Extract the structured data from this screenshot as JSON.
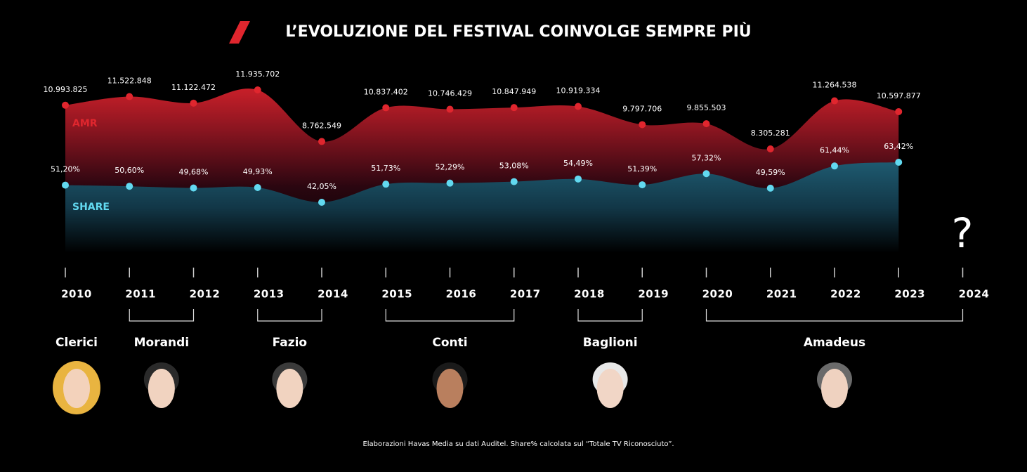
{
  "chart_data": {
    "type": "area",
    "title": "L’EVOLUZIONE DEL FESTIVAL COINVOLGE SEMPRE PIÙ",
    "categories": [
      "2010",
      "2011",
      "2012",
      "2013",
      "2014",
      "2015",
      "2016",
      "2017",
      "2018",
      "2019",
      "2020",
      "2021",
      "2022",
      "2023",
      "2024"
    ],
    "series": [
      {
        "name": "AMR",
        "color": "#e0262e",
        "values": [
          10993825,
          11522848,
          11122472,
          11935702,
          8762549,
          10837402,
          10746429,
          10847949,
          10919334,
          9797706,
          9855503,
          8305281,
          11264538,
          10597877,
          null
        ],
        "value_labels": [
          "10.993.825",
          "11.522.848",
          "11.122.472",
          "11.935.702",
          "8.762.549",
          "10.837.402",
          "10.746.429",
          "10.847.949",
          "10.919.334",
          "9.797.706",
          "9.855.503",
          "8.305.281",
          "11.264.538",
          "10.597.877",
          null
        ]
      },
      {
        "name": "SHARE",
        "color": "#62d9f0",
        "values": [
          51.2,
          50.6,
          49.68,
          49.93,
          42.05,
          51.73,
          52.29,
          53.08,
          54.49,
          51.39,
          57.32,
          49.59,
          61.44,
          63.42,
          null
        ],
        "value_labels": [
          "51,20%",
          "50,60%",
          "49,68%",
          "49,93%",
          "42,05%",
          "51,73%",
          "52,29%",
          "53,08%",
          "54,49%",
          "51,39%",
          "57,32%",
          "49,59%",
          "61,44%",
          "63,42%",
          null
        ]
      }
    ],
    "annotation": "?",
    "presenters": [
      "Clerici",
      "Morandi",
      "Fazio",
      "Conti",
      "Baglioni",
      "Amadeus"
    ],
    "source": "Elaborazioni Havas Media su dati Auditel. Share% calcolata sul “Totale TV Riconosciuto”."
  }
}
